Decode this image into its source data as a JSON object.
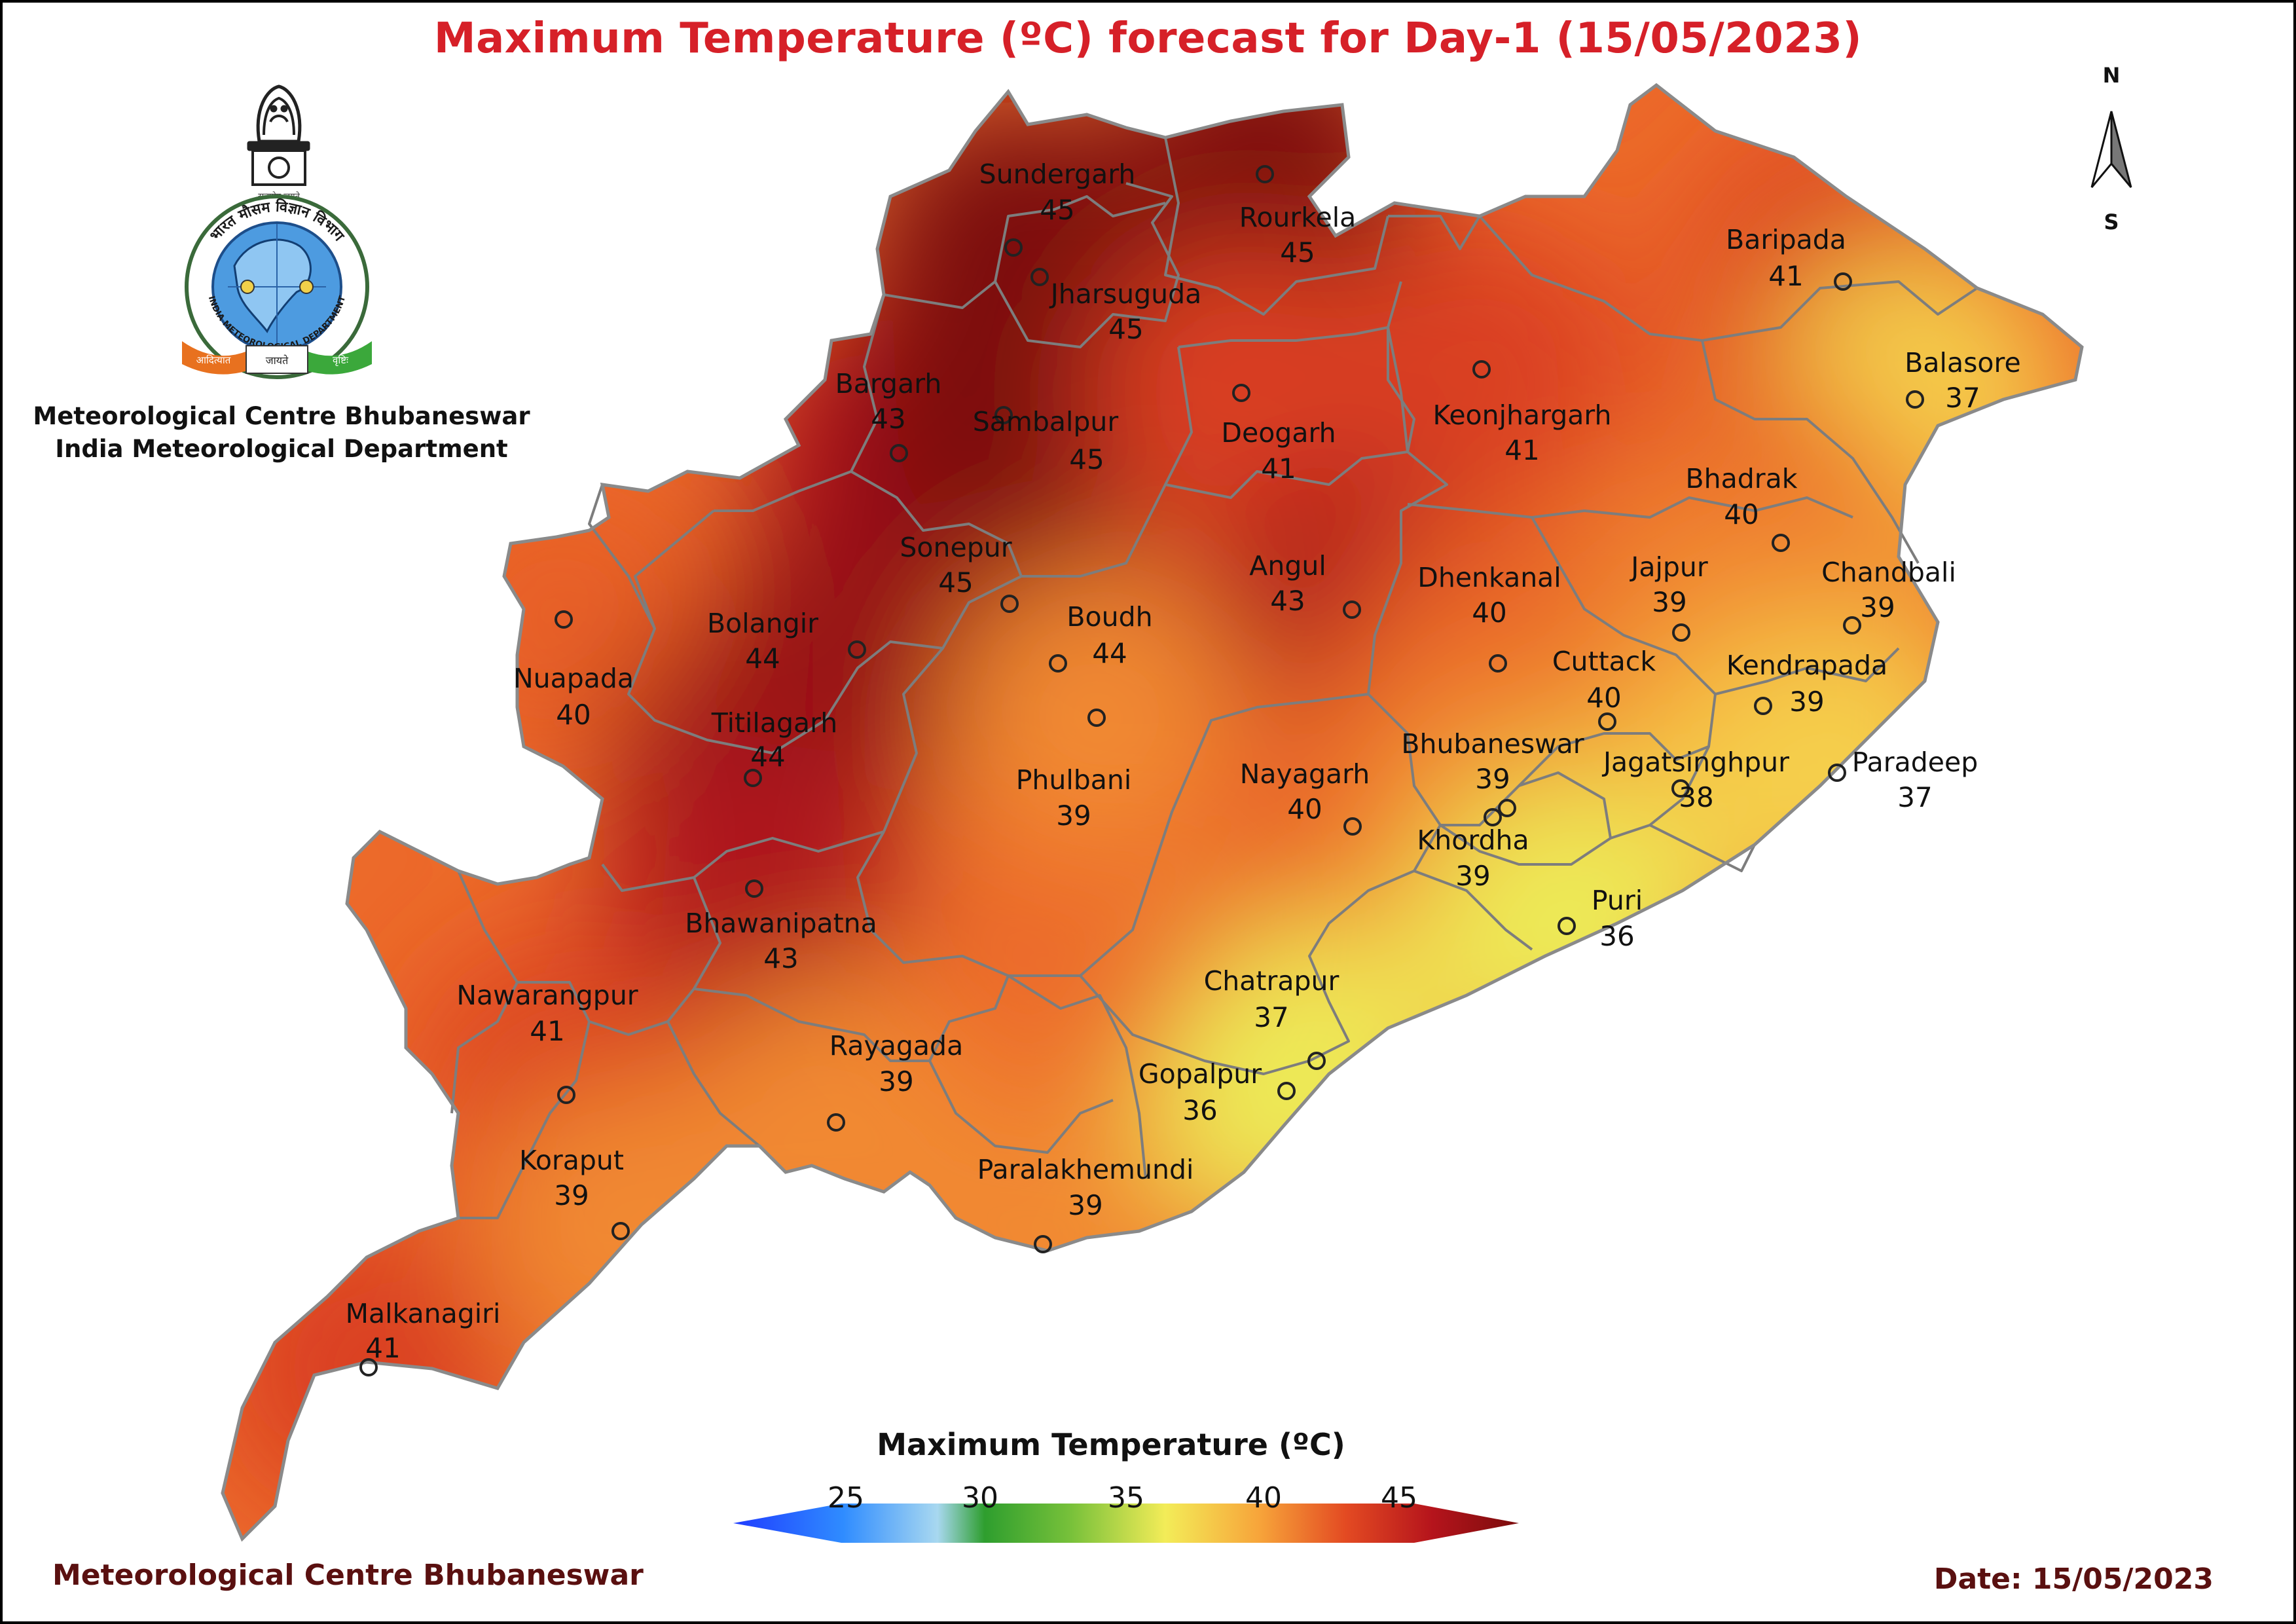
{
  "title": "Maximum Temperature (ºC) forecast for Day-1 (15/05/2023)",
  "organization": {
    "line1": "Meteorological Centre Bhubaneswar",
    "line2": "India Meteorological Department"
  },
  "logo": {
    "description_icon": "imd-emblem-logo",
    "hindi_arc": "भारत मौसम विज्ञान विभाग",
    "english_arc": "INDIA METEOROLOGICAL DEPARTMENT",
    "motto_left": "आदित्यात",
    "motto_mid": "जायते",
    "motto_right": "वृष्टिः",
    "emblem_caption": "सत्यमेव जयते"
  },
  "compass": {
    "north": "N",
    "south": "S",
    "icon": "north-arrow-icon"
  },
  "footer": {
    "left": "Meteorological Centre Bhubaneswar",
    "right": "Date: 15/05/2023"
  },
  "chart_data": {
    "type": "heatmap",
    "title": "Maximum Temperature (ºC) forecast for Day-1 (15/05/2023)",
    "colorbar": {
      "title": "Maximum Temperature (ºC)",
      "ticks": [
        "25",
        "30",
        "35",
        "40",
        "45"
      ],
      "range": [
        25,
        45
      ],
      "colors": [
        "#1f3cff",
        "#2f8cff",
        "#a8d8f0",
        "#2e9e2e",
        "#78c13a",
        "#f3ec58",
        "#f7a43a",
        "#e34a22",
        "#b5141c",
        "#7a0c0c"
      ]
    },
    "stations": [
      {
        "name": "Sundergarh",
        "value": 45
      },
      {
        "name": "Rourkela",
        "value": 45
      },
      {
        "name": "Jharsuguda",
        "value": 45
      },
      {
        "name": "Baripada",
        "value": 41
      },
      {
        "name": "Balasore",
        "value": 37
      },
      {
        "name": "Bargarh",
        "value": 43
      },
      {
        "name": "Sambalpur",
        "value": 45
      },
      {
        "name": "Deogarh",
        "value": 41
      },
      {
        "name": "Keonjhargarh",
        "value": 41
      },
      {
        "name": "Bhadrak",
        "value": 40
      },
      {
        "name": "Sonepur",
        "value": 45
      },
      {
        "name": "Angul",
        "value": 43
      },
      {
        "name": "Dhenkanal",
        "value": 40
      },
      {
        "name": "Jajpur",
        "value": 39
      },
      {
        "name": "Chandbali",
        "value": 39
      },
      {
        "name": "Nuapada",
        "value": 40
      },
      {
        "name": "Bolangir",
        "value": 44
      },
      {
        "name": "Boudh",
        "value": 44
      },
      {
        "name": "Cuttack",
        "value": 40
      },
      {
        "name": "Kendrapada",
        "value": 39
      },
      {
        "name": "Titilagarh",
        "value": 44
      },
      {
        "name": "Phulbani",
        "value": 39
      },
      {
        "name": "Nayagarh",
        "value": 40
      },
      {
        "name": "Bhubaneswar",
        "value": 39
      },
      {
        "name": "Jagatsinghpur",
        "value": 38
      },
      {
        "name": "Paradeep",
        "value": 37
      },
      {
        "name": "Khordha",
        "value": 39
      },
      {
        "name": "Puri",
        "value": 36
      },
      {
        "name": "Bhawanipatna",
        "value": 43
      },
      {
        "name": "Chatrapur",
        "value": 37
      },
      {
        "name": "Nawarangpur",
        "value": 41
      },
      {
        "name": "Rayagada",
        "value": 39
      },
      {
        "name": "Gopalpur",
        "value": 36
      },
      {
        "name": "Koraput",
        "value": 39
      },
      {
        "name": "Paralakhemundi",
        "value": 39
      },
      {
        "name": "Malkanagiri",
        "value": 41
      }
    ]
  }
}
